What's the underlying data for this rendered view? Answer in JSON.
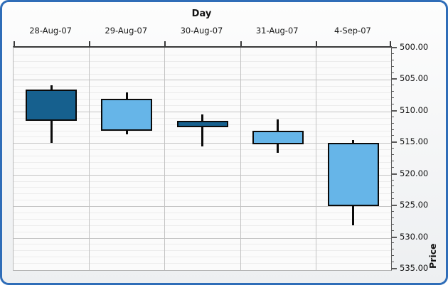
{
  "window": {
    "frame_border_color": "#2f6db8",
    "background_top": "#fdfdfd",
    "background_bottom": "#edeff1"
  },
  "chart_data": {
    "type": "candlestick",
    "title": "Day",
    "ylabel": "Price",
    "y_axis": {
      "min": 500,
      "max": 535,
      "major_step": 5,
      "minor_step": 1,
      "reversed": true,
      "position": "right",
      "tick_labels": [
        "500.00",
        "505.00",
        "510.00",
        "515.00",
        "520.00",
        "525.00",
        "530.00",
        "535.00"
      ]
    },
    "categories": [
      "28-Aug-07",
      "29-Aug-07",
      "30-Aug-07",
      "31-Aug-07",
      "4-Sep-07"
    ],
    "candles": [
      {
        "date": "28-Aug-07",
        "open": 511.5,
        "high": 515.0,
        "low": 505.8,
        "close": 506.5,
        "direction": "down"
      },
      {
        "date": "29-Aug-07",
        "open": 508.0,
        "high": 513.6,
        "low": 507.0,
        "close": 513.0,
        "direction": "up"
      },
      {
        "date": "30-Aug-07",
        "open": 512.5,
        "high": 515.5,
        "low": 510.5,
        "close": 511.5,
        "direction": "down"
      },
      {
        "date": "31-Aug-07",
        "open": 513.0,
        "high": 516.5,
        "low": 511.3,
        "close": 515.2,
        "direction": "up"
      },
      {
        "date": "4-Sep-07",
        "open": 515.0,
        "high": 528.0,
        "low": 514.5,
        "close": 525.0,
        "direction": "up"
      }
    ],
    "colors": {
      "up_fill": "#66b5e8",
      "down_fill": "#16608e",
      "outline": "#0a0a0a",
      "major_grid": "#c3c3c3",
      "minor_grid": "#ececec"
    },
    "grid": true,
    "legend": false
  }
}
